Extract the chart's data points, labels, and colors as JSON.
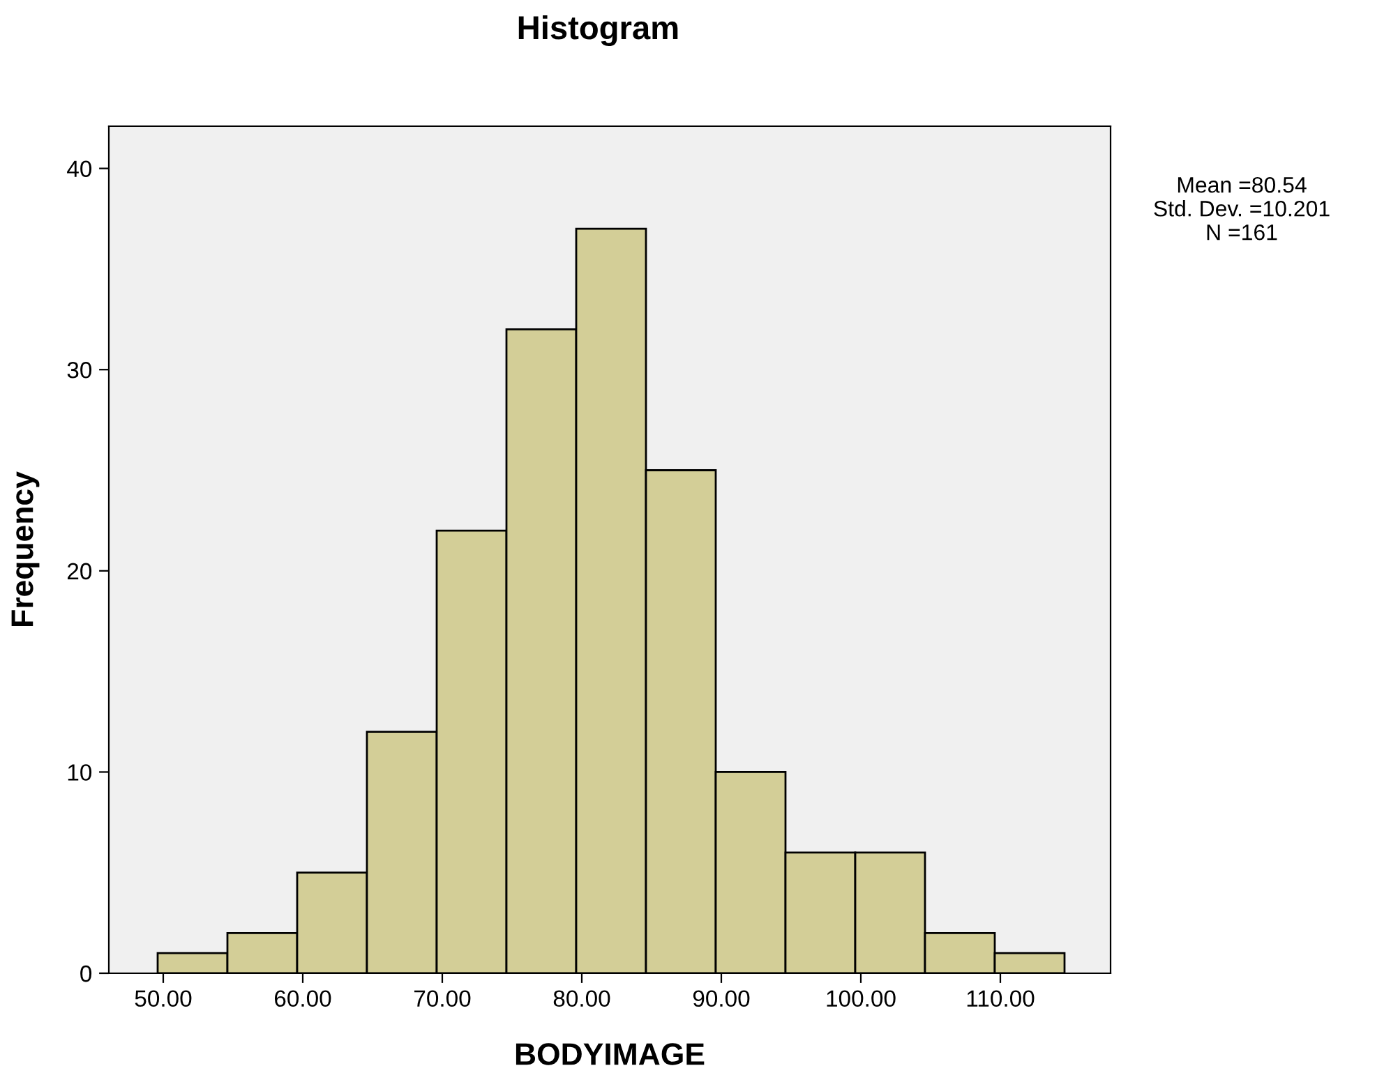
{
  "chart_data": {
    "type": "histogram",
    "title": "Histogram",
    "xlabel": "BODYIMAGE",
    "ylabel": "Frequency",
    "bins": [
      49.6,
      54.6,
      59.6,
      64.6,
      69.6,
      74.6,
      79.6,
      84.6,
      89.6,
      94.6,
      99.6,
      104.6,
      109.6,
      114.6
    ],
    "values": [
      1,
      2,
      5,
      12,
      22,
      32,
      37,
      25,
      10,
      6,
      6,
      2,
      1
    ],
    "color": "#d3ce97",
    "xlim": [
      46.1,
      117.9
    ],
    "ylim": [
      0,
      42.1
    ],
    "xticks": [
      {
        "value": 50,
        "label": "50.00"
      },
      {
        "value": 60,
        "label": "60.00"
      },
      {
        "value": 70,
        "label": "70.00"
      },
      {
        "value": 80,
        "label": "80.00"
      },
      {
        "value": 90,
        "label": "90.00"
      },
      {
        "value": 100,
        "label": "100.00"
      },
      {
        "value": 110,
        "label": "110.00"
      }
    ],
    "yticks": [
      0,
      10,
      20,
      30,
      40
    ],
    "grid": false,
    "legend": false,
    "annotations": [
      "Mean =80.54",
      "Std. Dev. =10.201",
      "N =161"
    ]
  }
}
